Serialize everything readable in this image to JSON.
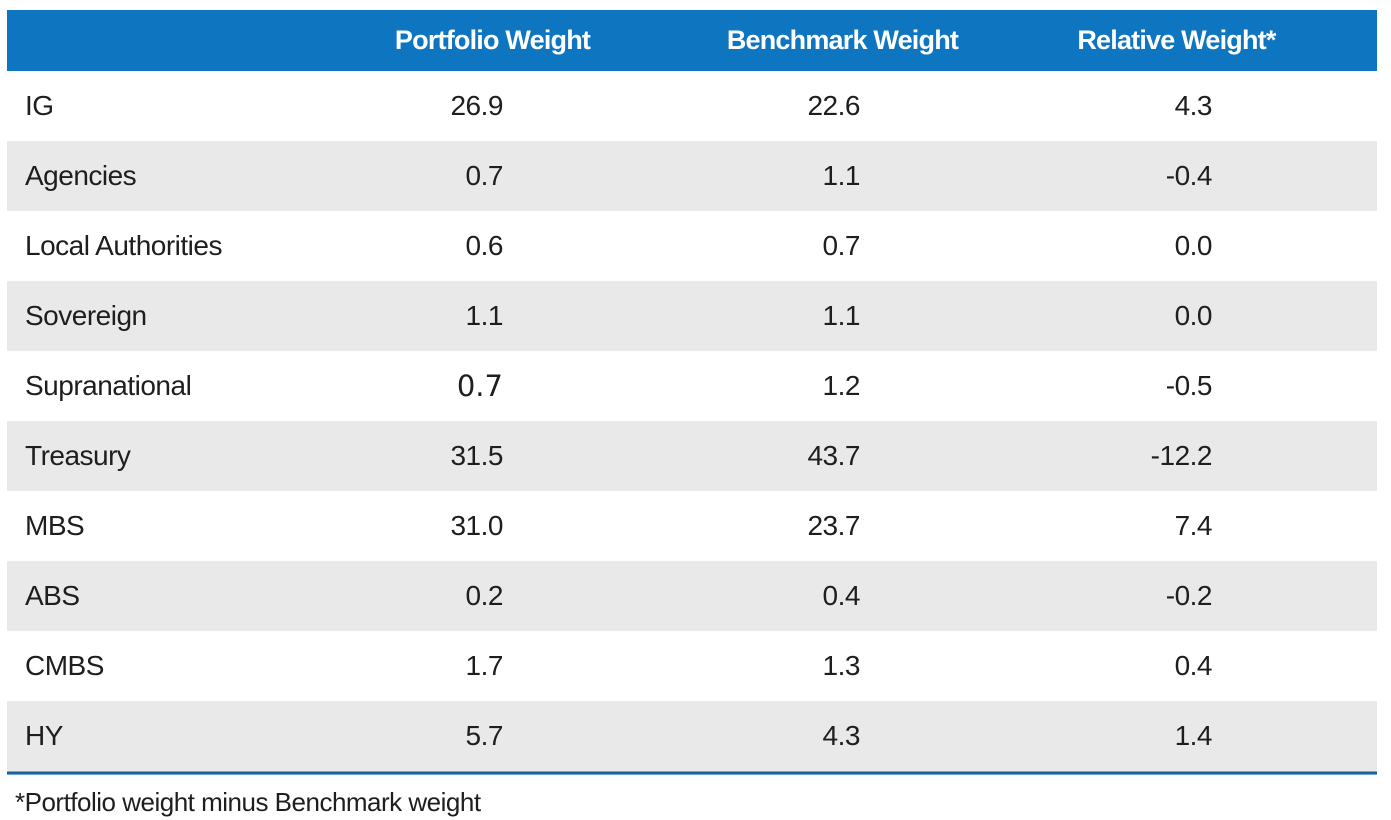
{
  "table": {
    "columns": [
      "",
      "Portfolio Weight",
      "Benchmark Weight",
      "Relative Weight*"
    ],
    "rows": [
      {
        "label": "IG",
        "portfolio": "26.9",
        "benchmark": "22.6",
        "relative": "4.3"
      },
      {
        "label": "Agencies",
        "portfolio": "0.7",
        "benchmark": "1.1",
        "relative": "-0.4"
      },
      {
        "label": "Local Authorities",
        "portfolio": "0.6",
        "benchmark": "0.7",
        "relative": "0.0"
      },
      {
        "label": "Sovereign",
        "portfolio": "1.1",
        "benchmark": "1.1",
        "relative": "0.0"
      },
      {
        "label": "Supranational",
        "portfolio": "0.7",
        "benchmark": "1.2",
        "relative": "-0.5"
      },
      {
        "label": "Treasury",
        "portfolio": "31.5",
        "benchmark": "43.7",
        "relative": "-12.2"
      },
      {
        "label": "MBS",
        "portfolio": "31.0",
        "benchmark": "23.7",
        "relative": "7.4"
      },
      {
        "label": "ABS",
        "portfolio": "0.2",
        "benchmark": "0.4",
        "relative": "-0.2"
      },
      {
        "label": "CMBS",
        "portfolio": "1.7",
        "benchmark": "1.3",
        "relative": "0.4"
      },
      {
        "label": "HY",
        "portfolio": "5.7",
        "benchmark": "4.3",
        "relative": "1.4"
      }
    ]
  },
  "footnote": "*Portfolio weight minus Benchmark weight",
  "colors": {
    "header_bg": "#0e76c1",
    "header_text": "#ffffff",
    "row_alt_bg": "#e9e9e9",
    "row_bg": "#ffffff",
    "body_text": "#1e1e1e",
    "bottom_rule": "#1f6096"
  },
  "chart_data": {
    "type": "table",
    "columns": [
      "",
      "Portfolio Weight",
      "Benchmark Weight",
      "Relative Weight*"
    ],
    "rows": [
      [
        "IG",
        26.9,
        22.6,
        4.3
      ],
      [
        "Agencies",
        0.7,
        1.1,
        -0.4
      ],
      [
        "Local Authorities",
        0.6,
        0.7,
        0.0
      ],
      [
        "Sovereign",
        1.1,
        1.1,
        0.0
      ],
      [
        "Supranational",
        0.7,
        1.2,
        -0.5
      ],
      [
        "Treasury",
        31.5,
        43.7,
        -12.2
      ],
      [
        "MBS",
        31.0,
        23.7,
        7.4
      ],
      [
        "ABS",
        0.2,
        0.4,
        -0.2
      ],
      [
        "CMBS",
        1.7,
        1.3,
        0.4
      ],
      [
        "HY",
        5.7,
        4.3,
        1.4
      ]
    ],
    "footnote": "*Portfolio weight minus Benchmark weight"
  }
}
